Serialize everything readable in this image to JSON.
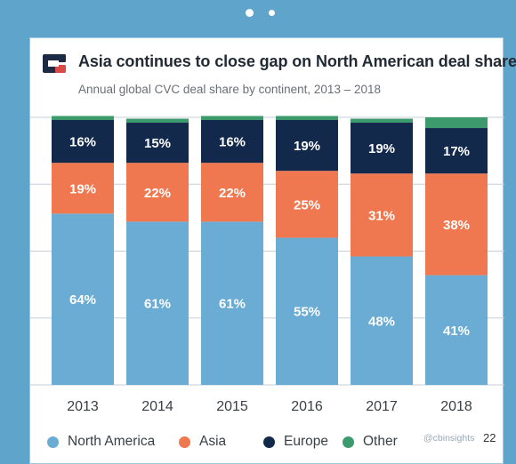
{
  "header": {
    "title": "Asia continues to close gap on North American deal share",
    "subtitle": "Annual global CVC deal share by continent, 2013 – 2018"
  },
  "colors": {
    "north_america": "#6aacd4",
    "asia": "#f07850",
    "europe": "#13294b",
    "other": "#3d9a6c",
    "gridline": "#c6cfd8",
    "logo_dark": "#1c2a44",
    "logo_accent": "#d94a46"
  },
  "chart_data": {
    "type": "bar",
    "stacked": true,
    "normalized_to": 100,
    "title": "Asia continues to close gap on North American deal share",
    "subtitle": "Annual global CVC deal share by continent, 2013 – 2018",
    "categories": [
      "2013",
      "2014",
      "2015",
      "2016",
      "2017",
      "2018"
    ],
    "series": [
      {
        "name": "North America",
        "values": [
          64,
          61,
          61,
          55,
          48,
          41
        ],
        "labels": [
          "64%",
          "61%",
          "61%",
          "55%",
          "48%",
          "41%"
        ]
      },
      {
        "name": "Asia",
        "values": [
          19,
          22,
          22,
          25,
          31,
          38
        ],
        "labels": [
          "19%",
          "22%",
          "22%",
          "25%",
          "31%",
          "38%"
        ]
      },
      {
        "name": "Europe",
        "values": [
          16,
          15,
          16,
          19,
          19,
          17
        ],
        "labels": [
          "16%",
          "15%",
          "16%",
          "19%",
          "19%",
          "17%"
        ]
      },
      {
        "name": "Other",
        "values": [
          1.5,
          1.5,
          1.5,
          1.5,
          1.5,
          4
        ],
        "labels": []
      }
    ],
    "ylim": [
      0,
      100
    ],
    "grid": true,
    "legend_position": "bottom"
  },
  "footer": {
    "watermark": "@cbinsights",
    "page_number": "22"
  }
}
